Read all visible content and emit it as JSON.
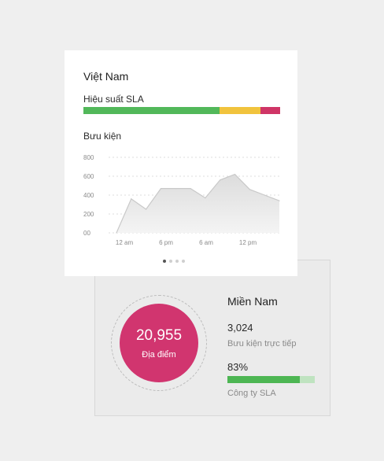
{
  "country_card": {
    "title": "Việt Nam",
    "sla_label": "Hiệu suất SLA",
    "sla_segments": [
      {
        "status": "good",
        "fraction": 0.69,
        "color": "#52b85a"
      },
      {
        "status": "warning",
        "fraction": 0.21,
        "color": "#f1c33d"
      },
      {
        "status": "critical",
        "fraction": 0.1,
        "color": "#cf3566"
      }
    ],
    "parcels_label": "Bưu kiện",
    "pagination": {
      "count": 4,
      "active_index": 0
    }
  },
  "chart_data": {
    "type": "area",
    "ylim": [
      0,
      800
    ],
    "y_ticks": [
      "800",
      "600",
      "400",
      "200",
      "00"
    ],
    "y_tick_values": [
      800,
      600,
      400,
      200,
      0
    ],
    "x_tick_labels": [
      "12 am",
      "6 pm",
      "6 am",
      "12 pm"
    ],
    "grid": true,
    "series": [
      {
        "values": [
          0,
          360,
          250,
          470,
          470,
          470,
          370,
          560,
          620,
          460,
          400,
          340
        ],
        "fill_color": "#e2e2e2",
        "line_color": "#c9c9c9"
      }
    ]
  },
  "region_card": {
    "title": "Miền Nam",
    "locations_value": "20,955",
    "locations_label": "Địa điểm",
    "direct_parcels_value": "3,024",
    "direct_parcels_label": "Bưu kiện trực tiếp",
    "company_sla_value": "83%",
    "company_sla_fraction": 0.83,
    "company_sla_label": "Công ty SLA"
  }
}
